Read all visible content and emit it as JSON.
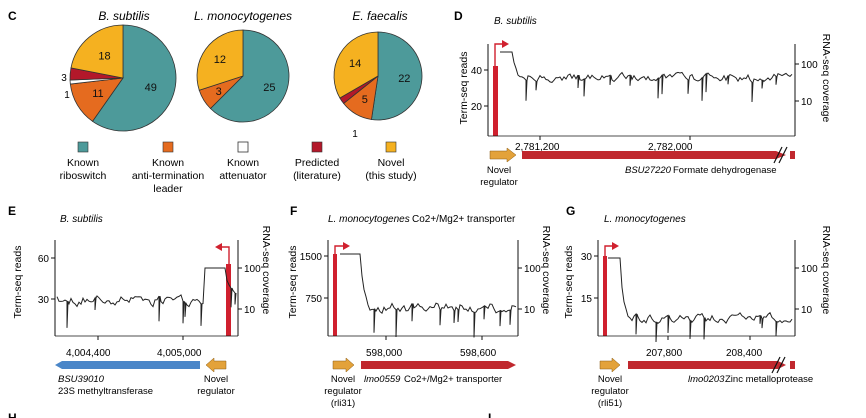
{
  "colors": {
    "riboswitch": "#4d9a9a",
    "antitermination": "#e56b1f",
    "attenuator": "#ffffff",
    "predicted": "#b3182a",
    "novel": "#f5b120",
    "promoter": "#d0202e",
    "gene_red": "#c0282e",
    "gene_blue": "#4a86c8",
    "regulator": "#e3a23a",
    "trace": "#222222"
  },
  "panels": {
    "C": {
      "letter": "C",
      "legend": [
        {
          "key": "riboswitch",
          "line1": "Known",
          "line2": "riboswitch",
          "line3": ""
        },
        {
          "key": "antitermination",
          "line1": "Known",
          "line2": "anti-termination",
          "line3": "leader"
        },
        {
          "key": "attenuator",
          "line1": "Known",
          "line2": "attenuator",
          "line3": ""
        },
        {
          "key": "predicted",
          "line1": "Predicted",
          "line2": "(literature)",
          "line3": ""
        },
        {
          "key": "novel",
          "line1": "Novel",
          "line2": "(this study)",
          "line3": ""
        }
      ]
    },
    "D": {
      "letter": "D",
      "organism": "B. subtilis",
      "y_left_label": "Term-seq reads",
      "y_right_label": "RNA-seq coverage",
      "genomic_ticks": [
        "2,781,200",
        "2,782,000"
      ],
      "reg_label_1": "Novel",
      "reg_label_2": "regulator",
      "reg_label_3": "",
      "gene_id": "BSU27220",
      "gene_desc": "Formate dehydrogenase"
    },
    "E": {
      "letter": "E",
      "organism": "B. subtilis",
      "y_left_label": "Term-seq reads",
      "y_right_label": "RNA-seq coverage",
      "genomic_ticks": [
        "4,004,400",
        "4,005,000"
      ],
      "reg_label_1": "Novel",
      "reg_label_2": "regulator",
      "reg_label_3": "",
      "gene_id": "BSU39010",
      "gene_desc": "23S methyltransferase"
    },
    "F": {
      "letter": "F",
      "organism": "L. monocytogenes",
      "y_left_label": "Term-seq reads",
      "y_right_label": "RNA-seq coverage",
      "genomic_ticks": [
        "598,000",
        "598,600"
      ],
      "reg_label_1": "Novel",
      "reg_label_2": "regulator",
      "reg_label_3": "(rli31)",
      "gene_id": "lmo0559",
      "gene_desc": "Co2+/Mg2+ transporter"
    },
    "G": {
      "letter": "G",
      "organism": "L. monocytogenes",
      "y_left_label": "Term-seq reads",
      "y_right_label": "RNA-seq coverage",
      "genomic_ticks": [
        "207,800",
        "208,400"
      ],
      "reg_label_1": "Novel",
      "reg_label_2": "regulator",
      "reg_label_3": "(rli51)",
      "gene_id": "lmo0203",
      "gene_desc": "Zinc metalloprotease"
    },
    "H": {
      "letter": "H"
    },
    "I": {
      "letter": "I"
    }
  },
  "chart_data": [
    {
      "panel": "C",
      "type": "pie",
      "title": "B. subtilis",
      "unit": "count",
      "slices": [
        {
          "category": "Known riboswitch",
          "value": 49
        },
        {
          "category": "Known anti-termination leader",
          "value": 11
        },
        {
          "category": "Known attenuator",
          "value": 1
        },
        {
          "category": "Predicted (literature)",
          "value": 3
        },
        {
          "category": "Novel (this study)",
          "value": 18
        }
      ]
    },
    {
      "panel": "C",
      "type": "pie",
      "title": "L. monocytogenes",
      "slices": [
        {
          "category": "Known riboswitch",
          "value": 25
        },
        {
          "category": "Known anti-termination leader",
          "value": 3
        },
        {
          "category": "Novel (this study)",
          "value": 12
        }
      ]
    },
    {
      "panel": "C",
      "type": "pie",
      "title": "E. faecalis",
      "slices": [
        {
          "category": "Known riboswitch",
          "value": 22
        },
        {
          "category": "Known anti-termination leader",
          "value": 5
        },
        {
          "category": "Predicted (literature)",
          "value": 1
        },
        {
          "category": "Novel (this study)",
          "value": 14
        }
      ]
    },
    {
      "panel": "D",
      "type": "line",
      "title": "B. subtilis",
      "ylabel": "Term-seq reads",
      "yticks": [
        20,
        40
      ],
      "ylim": [
        0,
        50
      ],
      "ylabel_right": "RNA-seq coverage",
      "yticks_right": [
        "10",
        "100"
      ],
      "xticks": [
        "2,781,200",
        "2,782,000"
      ],
      "term_seq_peak": 42,
      "gene": "BSU27220 Formate dehydrogenase"
    },
    {
      "panel": "E",
      "type": "line",
      "title": "B. subtilis",
      "ylabel": "Term-seq reads",
      "yticks": [
        30,
        60
      ],
      "ylim": [
        0,
        70
      ],
      "ylabel_right": "RNA-seq coverage",
      "yticks_right": [
        "10",
        "100"
      ],
      "xticks": [
        "4,004,400",
        "4,005,000"
      ],
      "term_seq_peak": 52,
      "gene": "BSU39010 23S methyltransferase"
    },
    {
      "panel": "F",
      "type": "line",
      "title": "L. monocytogenes",
      "ylabel": "Term-seq reads",
      "yticks": [
        750,
        1500
      ],
      "ylim": [
        0,
        1750
      ],
      "ylabel_right": "RNA-seq coverage",
      "yticks_right": [
        "10",
        "100"
      ],
      "xticks": [
        "598,000",
        "598,600"
      ],
      "term_seq_peak": 1560,
      "gene": "lmo0559 Co2+/Mg2+ transporter"
    },
    {
      "panel": "G",
      "type": "line",
      "title": "L. monocytogenes",
      "ylabel": "Term-seq reads",
      "yticks": [
        15,
        30
      ],
      "ylim": [
        0,
        35
      ],
      "ylabel_right": "RNA-seq coverage",
      "yticks_right": [
        "10",
        "100"
      ],
      "xticks": [
        "207,800",
        "208,400"
      ],
      "term_seq_peak": 31,
      "gene": "lmo0203 Zinc metalloprotease"
    }
  ]
}
